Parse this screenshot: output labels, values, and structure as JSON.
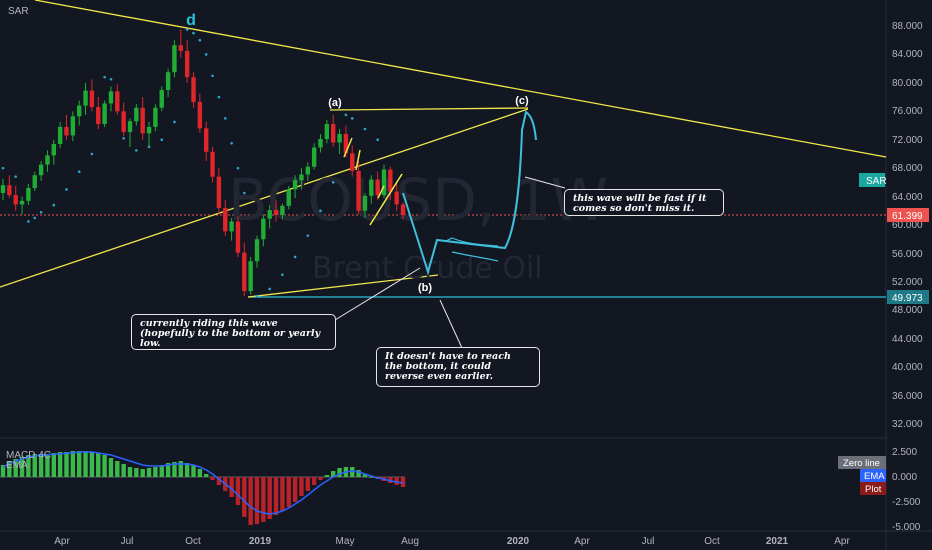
{
  "indicators": {
    "sar_label": "SAR",
    "macd_label": "MACD 4C",
    "ema_label": "EMA"
  },
  "watermark": {
    "symbol": "BCOUSD, 1W",
    "name": "Brent Crude Oil"
  },
  "annotations": {
    "wave_d": "d",
    "wave_a": "(a)",
    "wave_b": "(b)",
    "wave_c": "(c)",
    "callout_riding": "currently riding this wave (hopefully to the bottom or yearly low.",
    "callout_reverse": "It doesn't have to reach the bottom, it could reverse even earlier.",
    "callout_fast": "this wave will be fast if it comes so don't miss it."
  },
  "price_axis": {
    "ticks": [
      "88.000",
      "84.000",
      "80.000",
      "76.000",
      "72.000",
      "68.000",
      "64.000",
      "60.000",
      "56.000",
      "52.000",
      "48.000",
      "44.000",
      "40.000",
      "36.000",
      "32.000"
    ],
    "last_price": "61.399",
    "level_badge": "49.973",
    "sar_badge": "SAR"
  },
  "macd_axis": {
    "ticks": [
      "2.500",
      "0.000",
      "-2.500",
      "-5.000"
    ],
    "badges": [
      "Zero line",
      "EMA",
      "Plot"
    ]
  },
  "time_axis": {
    "ticks": [
      "Apr",
      "Jul",
      "Oct",
      "2019",
      "May",
      "Aug",
      "2020",
      "Apr",
      "Jul",
      "Oct",
      "2021",
      "Apr"
    ]
  },
  "colors": {
    "background": "#131722",
    "up": "#26a69a",
    "down": "#ef5350",
    "bull_candle": "#1fad36",
    "bear_candle": "#e0252b",
    "trend_line": "#f0e84a",
    "projection": "#3fbfdc",
    "sar_dot": "#2aa7c9",
    "level_line": "#26c6da",
    "price_line": "#ef5350"
  },
  "chart_data": {
    "type": "candlestick",
    "symbol": "BCOUSD",
    "timeframe": "1W",
    "ylim": [
      30,
      92
    ],
    "last_price": 61.399,
    "support_level": 49.973,
    "candles": [
      [
        64.5,
        66.5,
        63.5,
        65.6
      ],
      [
        65.6,
        67.0,
        63.8,
        64.2
      ],
      [
        64.2,
        65.5,
        62.0,
        62.9
      ],
      [
        62.9,
        64.0,
        61.5,
        63.4
      ],
      [
        63.4,
        65.8,
        62.8,
        65.2
      ],
      [
        65.2,
        67.5,
        64.8,
        67.0
      ],
      [
        67.0,
        69.0,
        66.2,
        68.5
      ],
      [
        68.5,
        70.5,
        67.5,
        69.8
      ],
      [
        69.8,
        72.0,
        68.5,
        71.4
      ],
      [
        71.4,
        74.5,
        70.8,
        73.8
      ],
      [
        73.8,
        75.5,
        72.0,
        72.6
      ],
      [
        72.6,
        76.0,
        71.8,
        75.3
      ],
      [
        75.3,
        77.5,
        74.0,
        76.8
      ],
      [
        76.8,
        80.0,
        75.5,
        78.9
      ],
      [
        78.9,
        80.5,
        76.0,
        76.6
      ],
      [
        76.6,
        78.0,
        73.5,
        74.2
      ],
      [
        74.2,
        77.5,
        73.8,
        77.1
      ],
      [
        77.1,
        79.5,
        76.0,
        78.8
      ],
      [
        78.8,
        79.8,
        75.5,
        76.0
      ],
      [
        76.0,
        77.2,
        72.5,
        73.1
      ],
      [
        73.1,
        75.0,
        71.0,
        74.6
      ],
      [
        74.6,
        77.0,
        74.0,
        76.5
      ],
      [
        76.5,
        78.0,
        72.0,
        72.9
      ],
      [
        72.9,
        74.5,
        71.0,
        73.8
      ],
      [
        73.8,
        77.0,
        73.2,
        76.5
      ],
      [
        76.5,
        79.5,
        76.0,
        79.0
      ],
      [
        79.0,
        82.0,
        78.0,
        81.5
      ],
      [
        81.5,
        86.0,
        80.8,
        85.3
      ],
      [
        85.3,
        87.5,
        83.5,
        84.5
      ],
      [
        84.5,
        86.0,
        80.0,
        80.8
      ],
      [
        80.8,
        81.5,
        76.5,
        77.3
      ],
      [
        77.3,
        78.5,
        73.0,
        73.6
      ],
      [
        73.6,
        74.5,
        69.0,
        70.3
      ],
      [
        70.3,
        71.0,
        66.0,
        66.8
      ],
      [
        66.8,
        68.0,
        61.5,
        62.4
      ],
      [
        62.4,
        63.5,
        58.5,
        59.1
      ],
      [
        59.1,
        61.0,
        57.8,
        60.5
      ],
      [
        60.5,
        61.2,
        55.5,
        56.1
      ],
      [
        56.1,
        57.5,
        50.0,
        50.7
      ],
      [
        50.7,
        55.5,
        50.2,
        54.9
      ],
      [
        54.9,
        58.5,
        54.0,
        58.0
      ],
      [
        58.0,
        61.5,
        57.0,
        60.9
      ],
      [
        60.9,
        62.8,
        59.5,
        62.1
      ],
      [
        62.1,
        63.5,
        60.5,
        61.4
      ],
      [
        61.4,
        63.0,
        60.8,
        62.7
      ],
      [
        62.7,
        65.5,
        62.2,
        65.0
      ],
      [
        65.0,
        67.0,
        63.8,
        66.3
      ],
      [
        66.3,
        68.0,
        65.0,
        67.1
      ],
      [
        67.1,
        68.8,
        66.2,
        68.2
      ],
      [
        68.2,
        71.5,
        67.8,
        70.9
      ],
      [
        70.9,
        72.8,
        70.2,
        72.1
      ],
      [
        72.1,
        74.8,
        71.5,
        74.2
      ],
      [
        74.2,
        75.5,
        71.0,
        71.6
      ],
      [
        71.6,
        73.5,
        70.0,
        72.8
      ],
      [
        72.8,
        74.0,
        69.5,
        70.1
      ],
      [
        70.1,
        71.2,
        66.8,
        67.6
      ],
      [
        67.6,
        69.0,
        61.5,
        62.0
      ],
      [
        62.0,
        64.5,
        61.0,
        64.1
      ],
      [
        64.1,
        67.0,
        63.0,
        66.4
      ],
      [
        66.4,
        67.5,
        63.5,
        64.2
      ],
      [
        64.2,
        68.5,
        63.8,
        67.8
      ],
      [
        67.8,
        68.2,
        63.5,
        64.7
      ],
      [
        64.7,
        66.0,
        62.0,
        62.9
      ],
      [
        62.9,
        63.2,
        60.8,
        61.399
      ]
    ],
    "sar": [
      [
        0,
        68.0
      ],
      [
        2,
        66.8
      ],
      [
        4,
        60.5
      ],
      [
        5,
        61.0
      ],
      [
        6,
        61.8
      ],
      [
        8,
        62.8
      ],
      [
        10,
        65.0
      ],
      [
        12,
        67.5
      ],
      [
        14,
        70.0
      ],
      [
        16,
        80.8
      ],
      [
        17,
        80.5
      ],
      [
        19,
        72.2
      ],
      [
        21,
        70.5
      ],
      [
        23,
        71.0
      ],
      [
        25,
        72.0
      ],
      [
        27,
        74.5
      ],
      [
        29,
        87.5
      ],
      [
        30,
        87.0
      ],
      [
        31,
        86.0
      ],
      [
        32,
        84.0
      ],
      [
        33,
        81.0
      ],
      [
        34,
        78.0
      ],
      [
        35,
        75.0
      ],
      [
        36,
        71.5
      ],
      [
        37,
        68.0
      ],
      [
        38,
        64.5
      ],
      [
        40,
        50.0
      ],
      [
        42,
        51.0
      ],
      [
        44,
        53.0
      ],
      [
        46,
        55.5
      ],
      [
        48,
        58.5
      ],
      [
        50,
        62.0
      ],
      [
        52,
        66.0
      ],
      [
        54,
        75.5
      ],
      [
        55,
        75.0
      ],
      [
        57,
        73.5
      ],
      [
        59,
        72.0
      ]
    ],
    "macd": {
      "ylim": [
        -5.5,
        3.0
      ],
      "histogram": [
        1.2,
        1.6,
        1.8,
        2.0,
        2.2,
        2.3,
        2.3,
        2.3,
        2.4,
        2.5,
        2.5,
        2.6,
        2.6,
        2.6,
        2.5,
        2.4,
        2.2,
        1.9,
        1.6,
        1.3,
        1.0,
        0.9,
        0.8,
        0.9,
        1.0,
        1.2,
        1.4,
        1.5,
        1.6,
        1.4,
        1.2,
        0.8,
        0.3,
        -0.3,
        -0.8,
        -1.4,
        -2.0,
        -2.8,
        -4.0,
        -4.8,
        -4.7,
        -4.5,
        -4.2,
        -3.8,
        -3.4,
        -3.0,
        -2.5,
        -1.9,
        -1.4,
        -0.8,
        -0.3,
        0.2,
        0.6,
        0.9,
        1.0,
        1.0,
        0.7,
        0.3,
        0.0,
        -0.2,
        -0.4,
        -0.6,
        -0.8,
        -1.0
      ],
      "ema": [
        1.0,
        1.3,
        1.6,
        1.8,
        2.0,
        2.1,
        2.2,
        2.2,
        2.3,
        2.3,
        2.4,
        2.4,
        2.5,
        2.5,
        2.5,
        2.4,
        2.3,
        2.2,
        2.0,
        1.8,
        1.6,
        1.4,
        1.2,
        1.1,
        1.1,
        1.1,
        1.2,
        1.3,
        1.3,
        1.3,
        1.2,
        1.0,
        0.7,
        0.3,
        -0.2,
        -0.7,
        -1.2,
        -1.8,
        -2.4,
        -3.0,
        -3.4,
        -3.6,
        -3.7,
        -3.6,
        -3.4,
        -3.1,
        -2.7,
        -2.3,
        -1.8,
        -1.3,
        -0.8,
        -0.4,
        0.0,
        0.3,
        0.5,
        0.6,
        0.5,
        0.3,
        0.1,
        -0.1,
        -0.2,
        -0.4,
        -0.5,
        -0.6
      ]
    }
  }
}
